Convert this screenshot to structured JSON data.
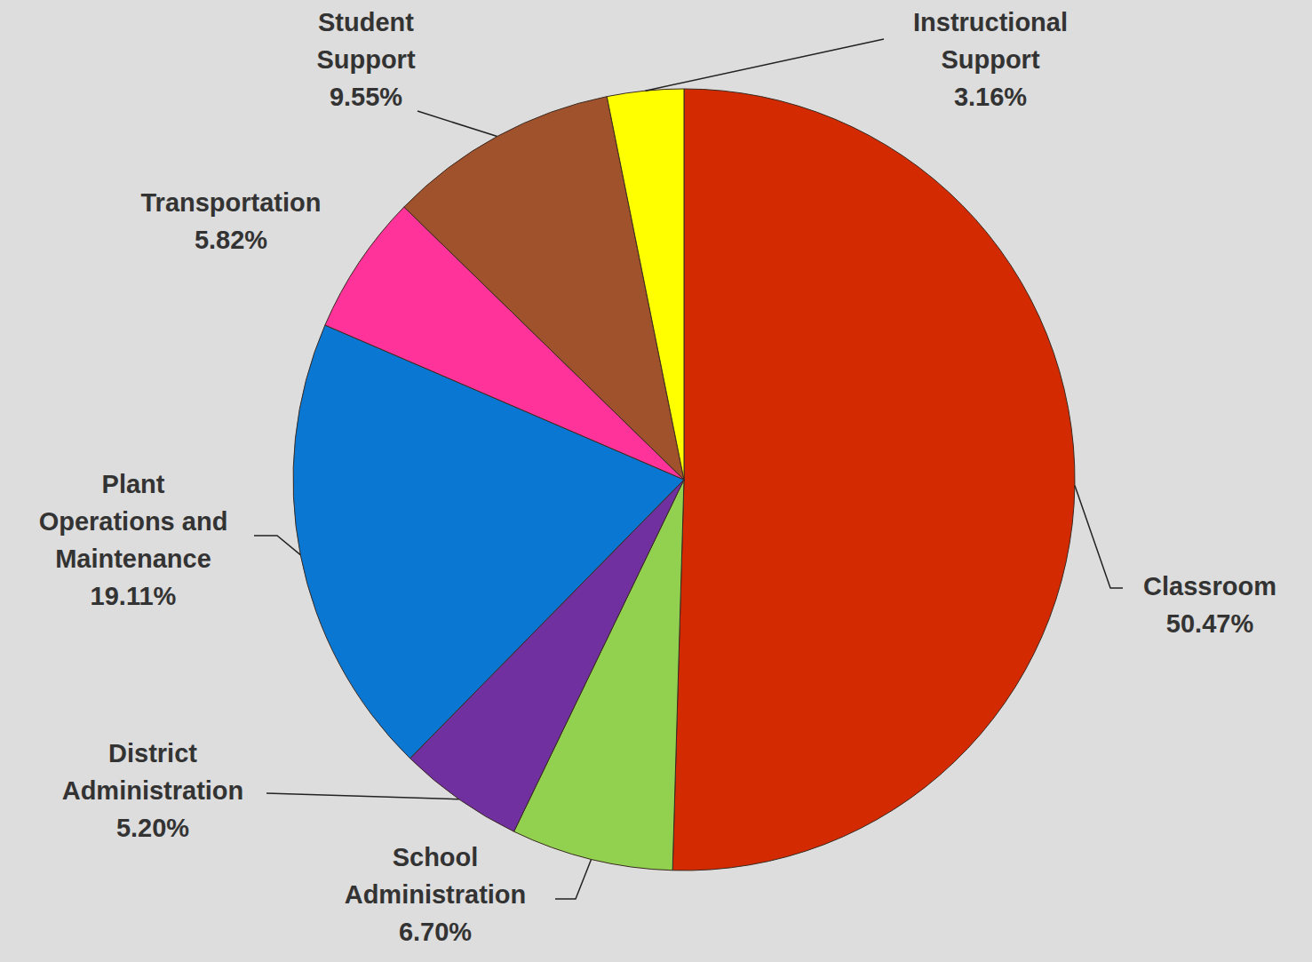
{
  "chart_data": {
    "type": "pie",
    "categories": [
      "Classroom",
      "School Administration",
      "District Administration",
      "Plant Operations and Maintenance",
      "Transportation",
      "Student Support",
      "Instructional Support"
    ],
    "values": [
      50.47,
      6.7,
      5.2,
      19.11,
      5.82,
      9.55,
      3.16
    ],
    "value_labels": [
      "50.47%",
      "6.70%",
      "5.20%",
      "19.11%",
      "5.82%",
      "9.55%",
      "3.16%"
    ],
    "colors": [
      "#d42a02",
      "#92d050",
      "#7030a0",
      "#0a78d2",
      "#ff3399",
      "#a0522d",
      "#ffff00"
    ],
    "data_labels": true
  }
}
